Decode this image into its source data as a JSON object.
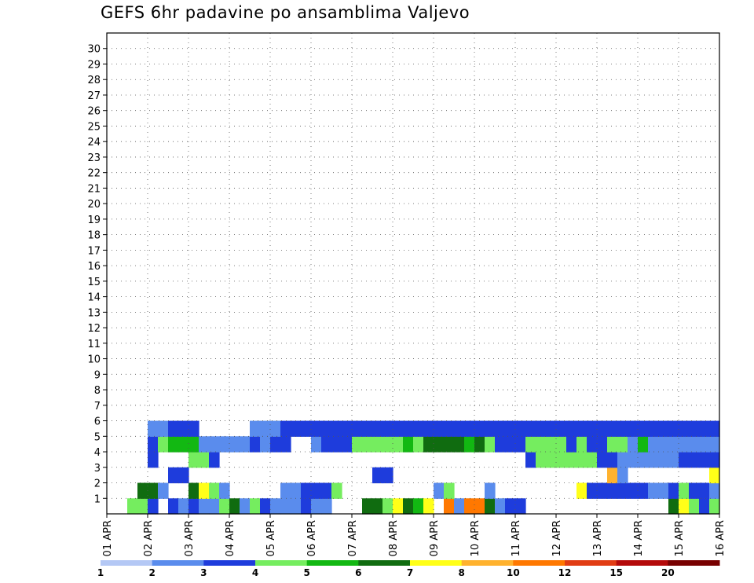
{
  "chart_data": {
    "type": "heatmap",
    "title": "GEFS 6hr padavine po ansamblima Valjevo",
    "y_ticks": [
      "1",
      "2",
      "3",
      "4",
      "5",
      "6",
      "7",
      "8",
      "9",
      "10",
      "11",
      "12",
      "13",
      "14",
      "15",
      "16",
      "17",
      "18",
      "19",
      "20",
      "21",
      "22",
      "23",
      "24",
      "25",
      "26",
      "27",
      "28",
      "29",
      "30"
    ],
    "x_ticks": [
      "01 APR",
      "02 APR",
      "03 APR",
      "04 APR",
      "05 APR",
      "06 APR",
      "07 APR",
      "08 APR",
      "09 APR",
      "10 APR",
      "11 APR",
      "12 APR",
      "13 APR",
      "14 APR",
      "15 APR",
      "16 APR"
    ],
    "xlim_days": [
      0,
      15
    ],
    "ylim_members": [
      0,
      30
    ],
    "step_hours": 6,
    "grid": true,
    "legend": {
      "placement": "bottom",
      "labels": [
        "1",
        "2",
        "3",
        "4",
        "5",
        "6",
        "7",
        "8",
        "10",
        "12",
        "15",
        "20"
      ],
      "colors": [
        "#b4c8f5",
        "#5a8ced",
        "#1e3cdc",
        "#75ed5f",
        "#12b812",
        "#106c10",
        "#ffff18",
        "#ffb22e",
        "#ff7800",
        "#e13c14",
        "#b40a0a",
        "#780000"
      ]
    },
    "cells": [
      [
        2,
        0,
        3
      ],
      [
        3,
        0,
        3
      ],
      [
        4,
        0,
        2
      ],
      [
        6,
        0,
        2
      ],
      [
        7,
        0,
        1
      ],
      [
        8,
        0,
        2
      ],
      [
        9,
        0,
        1
      ],
      [
        10,
        0,
        1
      ],
      [
        11,
        0,
        3
      ],
      [
        12,
        0,
        5
      ],
      [
        13,
        0,
        1
      ],
      [
        14,
        0,
        3
      ],
      [
        15,
        0,
        2
      ],
      [
        16,
        0,
        1
      ],
      [
        17,
        0,
        1
      ],
      [
        18,
        0,
        1
      ],
      [
        19,
        0,
        2
      ],
      [
        20,
        0,
        1
      ],
      [
        21,
        0,
        1
      ],
      [
        25,
        0,
        5
      ],
      [
        26,
        0,
        5
      ],
      [
        27,
        0,
        3
      ],
      [
        28,
        0,
        6
      ],
      [
        29,
        0,
        5
      ],
      [
        30,
        0,
        4
      ],
      [
        31,
        0,
        6
      ],
      [
        33,
        0,
        8
      ],
      [
        34,
        0,
        1
      ],
      [
        35,
        0,
        8
      ],
      [
        36,
        0,
        8
      ],
      [
        37,
        0,
        5
      ],
      [
        38,
        0,
        1
      ],
      [
        39,
        0,
        2
      ],
      [
        40,
        0,
        2
      ],
      [
        55,
        0,
        5
      ],
      [
        56,
        0,
        6
      ],
      [
        57,
        0,
        3
      ],
      [
        58,
        0,
        2
      ],
      [
        59,
        0,
        3
      ],
      [
        3,
        1,
        5
      ],
      [
        4,
        1,
        5
      ],
      [
        5,
        1,
        1
      ],
      [
        8,
        1,
        5
      ],
      [
        9,
        1,
        6
      ],
      [
        10,
        1,
        3
      ],
      [
        11,
        1,
        1
      ],
      [
        17,
        1,
        1
      ],
      [
        18,
        1,
        1
      ],
      [
        19,
        1,
        2
      ],
      [
        20,
        1,
        2
      ],
      [
        21,
        1,
        2
      ],
      [
        22,
        1,
        3
      ],
      [
        32,
        1,
        1
      ],
      [
        33,
        1,
        3
      ],
      [
        37,
        1,
        1
      ],
      [
        46,
        1,
        6
      ],
      [
        47,
        1,
        2
      ],
      [
        48,
        1,
        2
      ],
      [
        49,
        1,
        2
      ],
      [
        50,
        1,
        2
      ],
      [
        51,
        1,
        2
      ],
      [
        52,
        1,
        2
      ],
      [
        53,
        1,
        1
      ],
      [
        54,
        1,
        1
      ],
      [
        55,
        1,
        2
      ],
      [
        56,
        1,
        3
      ],
      [
        57,
        1,
        2
      ],
      [
        58,
        1,
        2
      ],
      [
        59,
        1,
        1
      ],
      [
        6,
        2,
        2
      ],
      [
        7,
        2,
        2
      ],
      [
        26,
        2,
        2
      ],
      [
        27,
        2,
        2
      ],
      [
        49,
        2,
        7
      ],
      [
        50,
        2,
        1
      ],
      [
        59,
        2,
        6
      ],
      [
        4,
        3,
        2
      ],
      [
        8,
        3,
        3
      ],
      [
        9,
        3,
        3
      ],
      [
        10,
        3,
        2
      ],
      [
        41,
        3,
        2
      ],
      [
        42,
        3,
        3
      ],
      [
        43,
        3,
        3
      ],
      [
        44,
        3,
        3
      ],
      [
        45,
        3,
        3
      ],
      [
        46,
        3,
        3
      ],
      [
        47,
        3,
        3
      ],
      [
        48,
        3,
        2
      ],
      [
        49,
        3,
        2
      ],
      [
        50,
        3,
        1
      ],
      [
        51,
        3,
        1
      ],
      [
        52,
        3,
        1
      ],
      [
        53,
        3,
        1
      ],
      [
        54,
        3,
        1
      ],
      [
        55,
        3,
        1
      ],
      [
        56,
        3,
        2
      ],
      [
        57,
        3,
        2
      ],
      [
        58,
        3,
        2
      ],
      [
        59,
        3,
        2
      ],
      [
        4,
        4,
        2
      ],
      [
        5,
        4,
        3
      ],
      [
        6,
        4,
        4
      ],
      [
        7,
        4,
        4
      ],
      [
        8,
        4,
        4
      ],
      [
        9,
        4,
        1
      ],
      [
        10,
        4,
        1
      ],
      [
        11,
        4,
        1
      ],
      [
        12,
        4,
        1
      ],
      [
        13,
        4,
        1
      ],
      [
        14,
        4,
        2
      ],
      [
        15,
        4,
        1
      ],
      [
        16,
        4,
        2
      ],
      [
        17,
        4,
        2
      ],
      [
        20,
        4,
        1
      ],
      [
        21,
        4,
        2
      ],
      [
        22,
        4,
        2
      ],
      [
        23,
        4,
        2
      ],
      [
        24,
        4,
        3
      ],
      [
        25,
        4,
        3
      ],
      [
        26,
        4,
        3
      ],
      [
        27,
        4,
        3
      ],
      [
        28,
        4,
        3
      ],
      [
        29,
        4,
        4
      ],
      [
        30,
        4,
        3
      ],
      [
        31,
        4,
        5
      ],
      [
        32,
        4,
        5
      ],
      [
        33,
        4,
        5
      ],
      [
        34,
        4,
        5
      ],
      [
        35,
        4,
        4
      ],
      [
        36,
        4,
        5
      ],
      [
        37,
        4,
        3
      ],
      [
        38,
        4,
        2
      ],
      [
        39,
        4,
        2
      ],
      [
        40,
        4,
        2
      ],
      [
        41,
        4,
        3
      ],
      [
        42,
        4,
        3
      ],
      [
        43,
        4,
        3
      ],
      [
        44,
        4,
        3
      ],
      [
        45,
        4,
        2
      ],
      [
        46,
        4,
        3
      ],
      [
        47,
        4,
        2
      ],
      [
        48,
        4,
        2
      ],
      [
        49,
        4,
        3
      ],
      [
        50,
        4,
        3
      ],
      [
        51,
        4,
        1
      ],
      [
        52,
        4,
        4
      ],
      [
        53,
        4,
        1
      ],
      [
        54,
        4,
        1
      ],
      [
        55,
        4,
        1
      ],
      [
        56,
        4,
        1
      ],
      [
        57,
        4,
        1
      ],
      [
        58,
        4,
        1
      ],
      [
        59,
        4,
        1
      ],
      [
        4,
        5,
        1
      ],
      [
        5,
        5,
        1
      ],
      [
        6,
        5,
        2
      ],
      [
        7,
        5,
        2
      ],
      [
        8,
        5,
        2
      ],
      [
        14,
        5,
        1
      ],
      [
        15,
        5,
        1
      ],
      [
        16,
        5,
        1
      ],
      [
        17,
        5,
        2
      ],
      [
        18,
        5,
        2
      ],
      [
        19,
        5,
        2
      ],
      [
        20,
        5,
        2
      ],
      [
        21,
        5,
        2
      ],
      [
        22,
        5,
        2
      ],
      [
        23,
        5,
        2
      ],
      [
        24,
        5,
        2
      ],
      [
        25,
        5,
        2
      ],
      [
        26,
        5,
        2
      ],
      [
        27,
        5,
        2
      ],
      [
        28,
        5,
        2
      ],
      [
        29,
        5,
        2
      ],
      [
        30,
        5,
        2
      ],
      [
        31,
        5,
        2
      ],
      [
        32,
        5,
        2
      ],
      [
        33,
        5,
        2
      ],
      [
        34,
        5,
        2
      ],
      [
        35,
        5,
        2
      ],
      [
        36,
        5,
        2
      ],
      [
        37,
        5,
        2
      ],
      [
        38,
        5,
        2
      ],
      [
        39,
        5,
        2
      ],
      [
        40,
        5,
        2
      ],
      [
        41,
        5,
        2
      ],
      [
        42,
        5,
        2
      ],
      [
        43,
        5,
        2
      ],
      [
        44,
        5,
        2
      ],
      [
        45,
        5,
        2
      ],
      [
        46,
        5,
        2
      ],
      [
        47,
        5,
        2
      ],
      [
        48,
        5,
        2
      ],
      [
        49,
        5,
        2
      ],
      [
        50,
        5,
        2
      ],
      [
        51,
        5,
        2
      ],
      [
        52,
        5,
        2
      ],
      [
        53,
        5,
        2
      ],
      [
        54,
        5,
        2
      ],
      [
        55,
        5,
        2
      ],
      [
        56,
        5,
        2
      ],
      [
        57,
        5,
        2
      ],
      [
        58,
        5,
        2
      ],
      [
        59,
        5,
        2
      ]
    ]
  }
}
